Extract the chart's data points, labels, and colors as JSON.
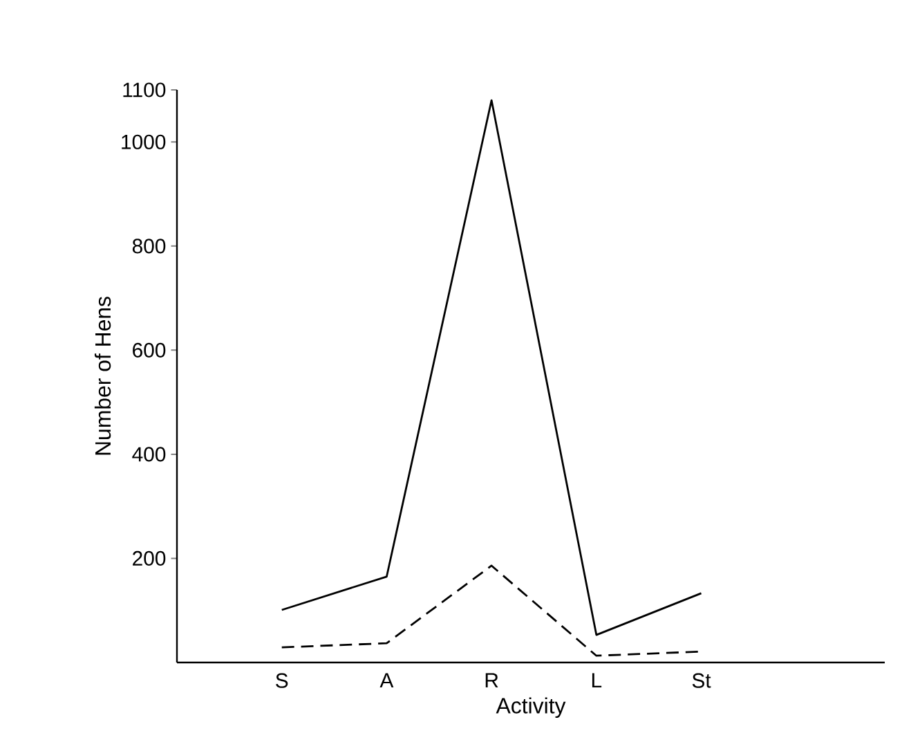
{
  "chart_data": {
    "type": "line",
    "xlabel": "Activity",
    "ylabel": "Number of Hens",
    "categories": [
      "S",
      "A",
      "R",
      "L",
      "St"
    ],
    "series": [
      {
        "color": "#000000",
        "line_style": "solid",
        "values": [
          101,
          165,
          1080,
          53,
          133
        ]
      },
      {
        "color": "#000000",
        "line_style": "dashed",
        "values": [
          29,
          37,
          186,
          13,
          21
        ]
      }
    ],
    "ylim": [
      0,
      1100
    ],
    "yticks": [
      200,
      400,
      600,
      800,
      1000,
      1100
    ],
    "grid": false,
    "marker": "none"
  }
}
